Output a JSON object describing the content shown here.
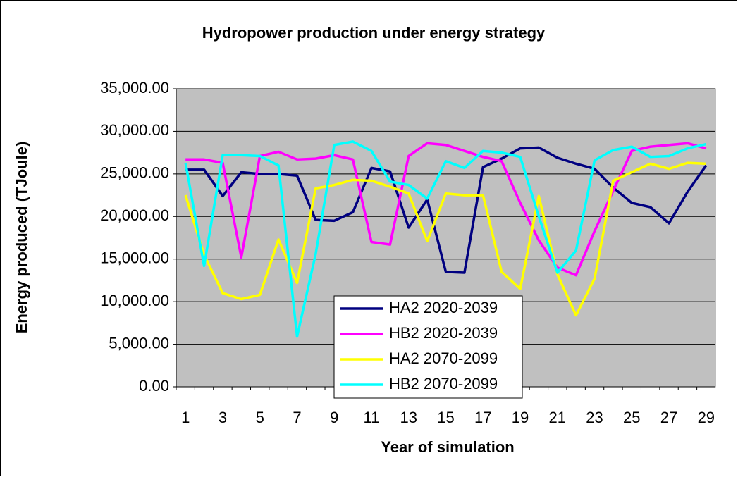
{
  "chart_data": {
    "type": "line",
    "title": "Hydropower production under energy strategy",
    "x_label": "Year of simulation",
    "y_label": "Energy produced (TJoule)",
    "categories": [
      1,
      null,
      3,
      null,
      5,
      null,
      7,
      null,
      9,
      null,
      11,
      null,
      13,
      null,
      15,
      null,
      17,
      null,
      19,
      null,
      21,
      null,
      23,
      null,
      25,
      null,
      27,
      null,
      29
    ],
    "series": [
      {
        "name": "HA2 2020-2039",
        "color": "#000080",
        "values": [
          25500,
          25500,
          22400,
          25200,
          25000,
          25000,
          24800,
          19600,
          19500,
          20500,
          25700,
          25300,
          18700,
          22000,
          13500,
          13400,
          25800,
          26800,
          28000,
          28100,
          26900,
          26200,
          25600,
          23400,
          21600,
          21100,
          19200,
          22900,
          26000
        ]
      },
      {
        "name": "HB2 2020-2039",
        "color": "#ff00ff",
        "values": [
          26700,
          26700,
          26300,
          15200,
          27100,
          27600,
          26700,
          26800,
          27200,
          26700,
          17000,
          16700,
          27100,
          28600,
          28400,
          27700,
          27000,
          26500,
          21600,
          17200,
          14000,
          13100,
          18300,
          23000,
          27700,
          28200,
          28400,
          28600,
          28000
        ]
      },
      {
        "name": "HA2 2070-2099",
        "color": "#ffff00",
        "values": [
          22500,
          15500,
          11000,
          10300,
          10800,
          17300,
          12200,
          23300,
          23700,
          24300,
          24200,
          23500,
          22700,
          17100,
          22700,
          22500,
          22500,
          13500,
          11500,
          22400,
          13200,
          8400,
          12700,
          24200,
          25200,
          26200,
          25600,
          26300,
          26200
        ]
      },
      {
        "name": "HB2 2070-2099",
        "color": "#00ffff",
        "values": [
          26300,
          14200,
          27200,
          27200,
          27100,
          26000,
          5900,
          15600,
          28400,
          28800,
          27700,
          24100,
          23700,
          22100,
          26500,
          25700,
          27700,
          27500,
          27000,
          20000,
          13400,
          16000,
          26600,
          27800,
          28200,
          27000,
          27100,
          28000,
          28500
        ]
      }
    ],
    "ylim": [
      0,
      35000
    ],
    "yticks": [
      {
        "value": 0,
        "label": "0.00"
      },
      {
        "value": 5000,
        "label": "5,000.00"
      },
      {
        "value": 10000,
        "label": "10,000.00"
      },
      {
        "value": 15000,
        "label": "15,000.00"
      },
      {
        "value": 20000,
        "label": "20,000.00"
      },
      {
        "value": 25000,
        "label": "25,000.00"
      },
      {
        "value": 30000,
        "label": "30,000.00"
      },
      {
        "value": 35000,
        "label": "35,000.00"
      }
    ],
    "grid": true,
    "plot_background": "#c0c0c0",
    "legend": "lower-center"
  }
}
